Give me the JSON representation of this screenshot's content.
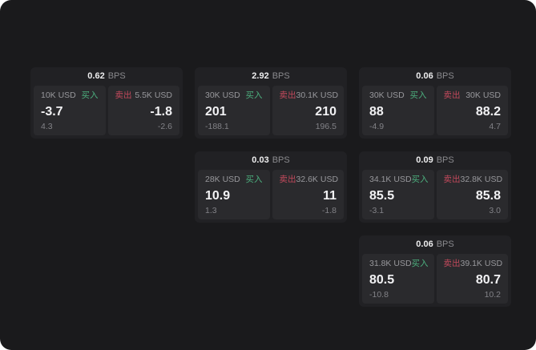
{
  "labels": {
    "bps_unit": "BPS",
    "buy": "买入",
    "sell": "卖出"
  },
  "colors": {
    "background": "#1a1a1c",
    "card": "#212124",
    "panel": "#2a2a2d",
    "buy_green": "#4caf7e",
    "sell_red": "#c2495c"
  },
  "cards": [
    {
      "bps": "0.62",
      "buy": {
        "amount": "10K USD",
        "price": "-3.7",
        "sub_value": "4.3"
      },
      "sell": {
        "amount": "5.5K USD",
        "price": "-1.8",
        "sub_value": "-2.6"
      }
    },
    {
      "bps": "2.92",
      "buy": {
        "amount": "30K USD",
        "price": "201",
        "sub_value": "-188.1"
      },
      "sell": {
        "amount": "30.1K USD",
        "price": "210",
        "sub_value": "196.5"
      }
    },
    {
      "bps": "0.06",
      "buy": {
        "amount": "30K USD",
        "price": "88",
        "sub_value": "-4.9"
      },
      "sell": {
        "amount": "30K USD",
        "price": "88.2",
        "sub_value": "4.7"
      }
    },
    {
      "bps": "0.03",
      "buy": {
        "amount": "28K USD",
        "price": "10.9",
        "sub_value": "1.3"
      },
      "sell": {
        "amount": "32.6K USD",
        "price": "11",
        "sub_value": "-1.8"
      }
    },
    {
      "bps": "0.09",
      "buy": {
        "amount": "34.1K USD",
        "price": "85.5",
        "sub_value": "-3.1"
      },
      "sell": {
        "amount": "32.8K USD",
        "price": "85.8",
        "sub_value": "3.0"
      }
    },
    {
      "bps": "0.06",
      "buy": {
        "amount": "31.8K USD",
        "price": "80.5",
        "sub_value": "-10.8"
      },
      "sell": {
        "amount": "39.1K USD",
        "price": "80.7",
        "sub_value": "10.2"
      }
    }
  ]
}
